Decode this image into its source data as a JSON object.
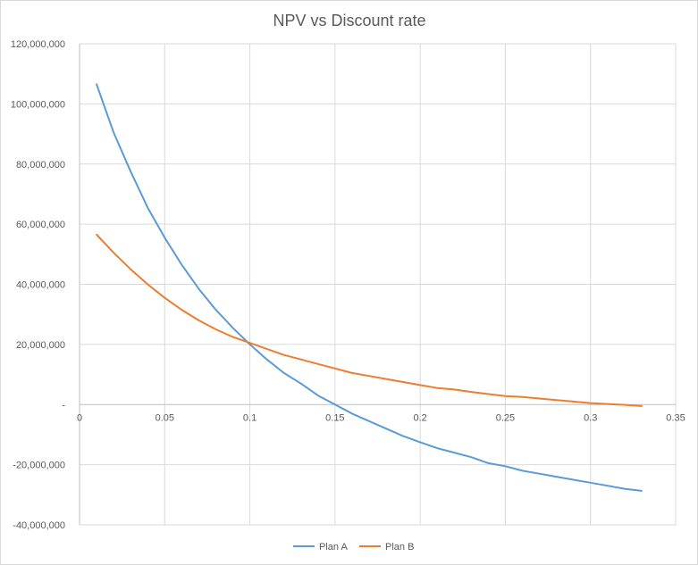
{
  "chart_data": {
    "type": "line",
    "title": "NPV vs Discount rate",
    "xlabel": "",
    "ylabel": "",
    "xlim": [
      0,
      0.35
    ],
    "ylim": [
      -40000000,
      120000000
    ],
    "x_ticks": [
      0,
      0.05,
      0.1,
      0.15,
      0.2,
      0.25,
      0.3,
      0.35
    ],
    "x_tick_labels": [
      "0",
      "0.05",
      "0.1",
      "0.15",
      "0.2",
      "0.25",
      "0.3",
      "0.35"
    ],
    "y_ticks": [
      -40000000,
      -20000000,
      0,
      20000000,
      40000000,
      60000000,
      80000000,
      100000000,
      120000000
    ],
    "y_tick_labels": [
      "-40,000,000",
      "-20,000,000",
      "-",
      "20,000,000",
      "40,000,000",
      "60,000,000",
      "80,000,000",
      "100,000,000",
      "120,000,000"
    ],
    "grid": true,
    "legend_position": "bottom",
    "x": [
      0.01,
      0.02,
      0.03,
      0.04,
      0.05,
      0.06,
      0.07,
      0.08,
      0.09,
      0.1,
      0.11,
      0.12,
      0.13,
      0.14,
      0.15,
      0.16,
      0.17,
      0.18,
      0.19,
      0.2,
      0.21,
      0.22,
      0.23,
      0.24,
      0.25,
      0.26,
      0.27,
      0.28,
      0.29,
      0.3,
      0.31,
      0.32,
      0.33
    ],
    "series": [
      {
        "name": "Plan A",
        "color": "#5b9bd5",
        "values": [
          106500000,
          90500000,
          77500000,
          65500000,
          55500000,
          46500000,
          38500000,
          31500000,
          25500000,
          20000000,
          15000000,
          10500000,
          7000000,
          3000000,
          0,
          -3000000,
          -5500000,
          -8000000,
          -10500000,
          -12500000,
          -14500000,
          -16000000,
          -17500000,
          -19500000,
          -20500000,
          -22000000,
          -23000000,
          -24000000,
          -25000000,
          -26000000,
          -27000000,
          -28000000,
          -28700000
        ]
      },
      {
        "name": "Plan B",
        "color": "#ed7d31",
        "values": [
          56500000,
          50500000,
          45000000,
          40000000,
          35500000,
          31500000,
          28000000,
          25000000,
          22500000,
          20500000,
          18500000,
          16500000,
          15000000,
          13500000,
          12000000,
          10500000,
          9500000,
          8500000,
          7500000,
          6500000,
          5500000,
          5000000,
          4200000,
          3500000,
          2800000,
          2500000,
          2000000,
          1500000,
          1000000,
          500000,
          200000,
          -100000,
          -500000
        ]
      }
    ]
  }
}
